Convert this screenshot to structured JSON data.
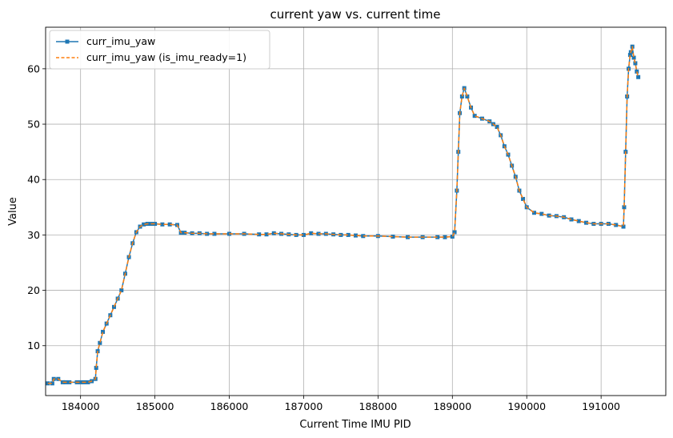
{
  "chart_data": {
    "type": "line",
    "title": "current yaw vs. current time",
    "xlabel": "Current Time IMU PID",
    "ylabel": "Value",
    "xlim": [
      183530,
      191870
    ],
    "ylim": [
      1,
      67.5
    ],
    "xticks": [
      184000,
      185000,
      186000,
      187000,
      188000,
      189000,
      190000,
      191000
    ],
    "yticks": [
      10,
      20,
      30,
      40,
      50,
      60
    ],
    "grid": true,
    "legend_position": "top-left",
    "series": [
      {
        "name": "curr_imu_yaw",
        "color": "#1f77b4",
        "style": "solid-square-markers",
        "x": [
          183560,
          183620,
          183640,
          183700,
          183760,
          183800,
          183850,
          183950,
          184000,
          184050,
          184100,
          184150,
          184200,
          184210,
          184230,
          184260,
          184300,
          184350,
          184400,
          184450,
          184500,
          184550,
          184600,
          184650,
          184700,
          184750,
          184800,
          184850,
          184900,
          184950,
          185000,
          185100,
          185200,
          185300,
          185350,
          185400,
          185500,
          185600,
          185700,
          185800,
          186000,
          186200,
          186400,
          186500,
          186600,
          186700,
          186800,
          186900,
          187000,
          187100,
          187200,
          187300,
          187400,
          187500,
          187600,
          187700,
          187800,
          188000,
          188200,
          188400,
          188600,
          188800,
          188900,
          189000,
          189030,
          189060,
          189080,
          189100,
          189130,
          189160,
          189200,
          189250,
          189300,
          189400,
          189500,
          189550,
          189600,
          189650,
          189700,
          189750,
          189800,
          189850,
          189900,
          189950,
          190000,
          190100,
          190200,
          190300,
          190400,
          190500,
          190600,
          190700,
          190800,
          190900,
          191000,
          191100,
          191200,
          191300,
          191310,
          191330,
          191350,
          191370,
          191390,
          191400,
          191420,
          191440,
          191460,
          191480,
          191500
        ],
        "y": [
          3.2,
          3.2,
          4.0,
          4.0,
          3.4,
          3.4,
          3.4,
          3.4,
          3.4,
          3.4,
          3.4,
          3.6,
          4.0,
          6.0,
          9.0,
          10.5,
          12.5,
          14.0,
          15.5,
          17.0,
          18.5,
          20.0,
          23.0,
          26.0,
          28.5,
          30.5,
          31.5,
          31.9,
          32.0,
          32.0,
          32.0,
          31.9,
          31.9,
          31.8,
          30.4,
          30.4,
          30.3,
          30.3,
          30.2,
          30.2,
          30.2,
          30.2,
          30.1,
          30.1,
          30.3,
          30.2,
          30.1,
          30.0,
          30.0,
          30.3,
          30.2,
          30.2,
          30.1,
          30.0,
          30.0,
          29.9,
          29.8,
          29.8,
          29.7,
          29.6,
          29.6,
          29.6,
          29.6,
          29.7,
          30.5,
          38.0,
          45.0,
          52.0,
          55.0,
          56.5,
          55.0,
          53.0,
          51.5,
          51.0,
          50.5,
          50.0,
          49.5,
          48.0,
          46.0,
          44.5,
          42.5,
          40.5,
          38.0,
          36.5,
          35.0,
          34.0,
          33.8,
          33.5,
          33.4,
          33.2,
          32.8,
          32.5,
          32.2,
          32.0,
          32.0,
          32.0,
          31.8,
          31.5,
          35.0,
          45.0,
          55.0,
          60.0,
          62.5,
          63.0,
          64.0,
          62.0,
          61.0,
          59.5,
          58.5
        ]
      },
      {
        "name": "curr_imu_yaw (is_imu_ready=1)",
        "color": "#ff7f0e",
        "style": "dashed",
        "x": [
          183560,
          183620,
          183640,
          183700,
          183760,
          183800,
          183850,
          183950,
          184000,
          184050,
          184100,
          184150,
          184200,
          184210,
          184230,
          184260,
          184300,
          184350,
          184400,
          184450,
          184500,
          184550,
          184600,
          184650,
          184700,
          184750,
          184800,
          184850,
          184900,
          184950,
          185000,
          185100,
          185200,
          185300,
          185350,
          185400,
          185500,
          185600,
          185700,
          185800,
          186000,
          186200,
          186400,
          186500,
          186600,
          186700,
          186800,
          186900,
          187000,
          187100,
          187200,
          187300,
          187400,
          187500,
          187600,
          187700,
          187800,
          188000,
          188200,
          188400,
          188600,
          188800,
          188900,
          189000,
          189030,
          189060,
          189080,
          189100,
          189130,
          189160,
          189200,
          189250,
          189300,
          189400,
          189500,
          189550,
          189600,
          189650,
          189700,
          189750,
          189800,
          189850,
          189900,
          189950,
          190000,
          190100,
          190200,
          190300,
          190400,
          190500,
          190600,
          190700,
          190800,
          190900,
          191000,
          191100,
          191200,
          191300,
          191310,
          191330,
          191350,
          191370,
          191390,
          191400,
          191420,
          191440,
          191460,
          191480,
          191500
        ],
        "y": [
          3.2,
          3.2,
          4.0,
          4.0,
          3.4,
          3.4,
          3.4,
          3.4,
          3.4,
          3.4,
          3.4,
          3.6,
          4.0,
          6.0,
          9.0,
          10.5,
          12.5,
          14.0,
          15.5,
          17.0,
          18.5,
          20.0,
          23.0,
          26.0,
          28.5,
          30.5,
          31.5,
          31.9,
          32.0,
          32.0,
          32.0,
          31.9,
          31.9,
          31.8,
          30.4,
          30.4,
          30.3,
          30.3,
          30.2,
          30.2,
          30.2,
          30.2,
          30.1,
          30.1,
          30.3,
          30.2,
          30.1,
          30.0,
          30.0,
          30.3,
          30.2,
          30.2,
          30.1,
          30.0,
          30.0,
          29.9,
          29.8,
          29.8,
          29.7,
          29.6,
          29.6,
          29.6,
          29.6,
          29.7,
          30.5,
          38.0,
          45.0,
          52.0,
          55.0,
          56.5,
          55.0,
          53.0,
          51.5,
          51.0,
          50.5,
          50.0,
          49.5,
          48.0,
          46.0,
          44.5,
          42.5,
          40.5,
          38.0,
          36.5,
          35.0,
          34.0,
          33.8,
          33.5,
          33.4,
          33.2,
          32.8,
          32.5,
          32.2,
          32.0,
          32.0,
          32.0,
          31.8,
          31.5,
          35.0,
          45.0,
          55.0,
          60.0,
          62.5,
          63.0,
          64.0,
          62.0,
          61.0,
          59.5,
          58.5
        ]
      }
    ]
  }
}
